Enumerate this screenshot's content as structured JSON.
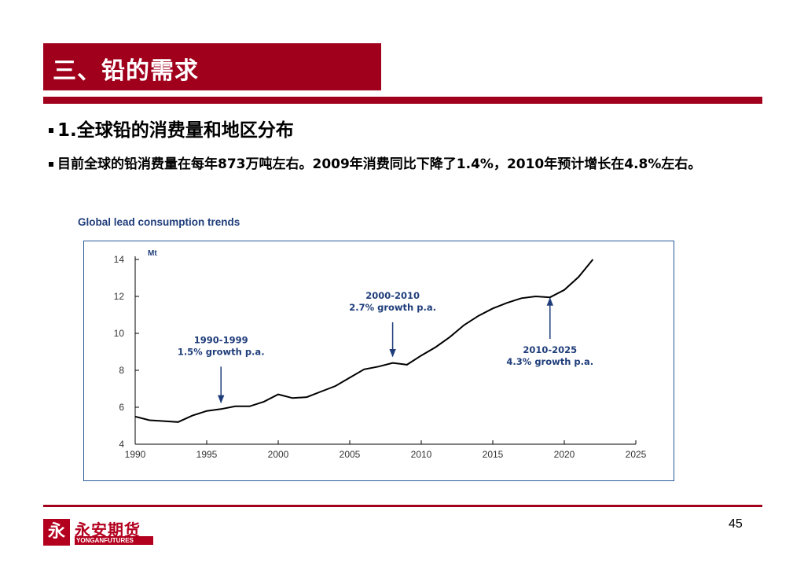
{
  "header": {
    "title": "三、铅的需求"
  },
  "bullets": [
    "1.全球铅的消费量和地区分布",
    "目前全球的铅消费量在每年873万吨左右。2009年消费同比下降了1.4%，2010年预计增长在4.8%左右。"
  ],
  "chart_data": {
    "type": "line",
    "title": "Global lead consumption trends",
    "ylabel": "Mt",
    "xlim": [
      1990,
      2025
    ],
    "ylim": [
      4,
      14
    ],
    "x_ticks": [
      1990,
      1995,
      2000,
      2005,
      2010,
      2015,
      2020,
      2025
    ],
    "y_ticks": [
      4,
      6,
      8,
      10,
      12,
      14
    ],
    "series": [
      {
        "x": [
          1990,
          1991,
          1992,
          1993,
          1994,
          1995,
          1996,
          1997,
          1998,
          1999,
          2000,
          2001,
          2002,
          2003,
          2004,
          2005,
          2006,
          2007,
          2008,
          2009,
          2010,
          2011,
          2012,
          2013,
          2014,
          2015,
          2016,
          2017,
          2018,
          2019,
          2020,
          2021,
          2022
        ],
        "y": [
          5.5,
          5.3,
          5.25,
          5.2,
          5.55,
          5.8,
          5.9,
          6.05,
          6.05,
          6.3,
          6.7,
          6.5,
          6.55,
          6.85,
          7.15,
          7.6,
          8.05,
          8.2,
          8.4,
          8.3,
          8.8,
          9.25,
          9.8,
          10.45,
          10.95,
          11.35,
          11.65,
          11.9,
          12.0,
          11.95,
          12.35,
          13.05,
          14.0
        ],
        "color": "#000000"
      }
    ],
    "annotations": [
      {
        "label_lines": [
          "1990-1999",
          "1.5% growth p.a."
        ],
        "arrow_x": 1996,
        "arrow_from_y": 8.2,
        "arrow_to_y": 6.25
      },
      {
        "label_lines": [
          "2000-2010",
          "2.7% growth p.a."
        ],
        "arrow_x": 2008,
        "arrow_from_y": 10.6,
        "arrow_to_y": 8.75
      },
      {
        "label_lines": [
          "2010-2025",
          "4.3% growth p.a."
        ],
        "arrow_x": 2019,
        "arrow_from_y": 9.7,
        "arrow_to_y": 11.9
      }
    ]
  },
  "footer": {
    "logo_mark": "永",
    "logo_cn": "永安期货",
    "logo_en": "YONGANFUTURES",
    "page_number": "45"
  }
}
